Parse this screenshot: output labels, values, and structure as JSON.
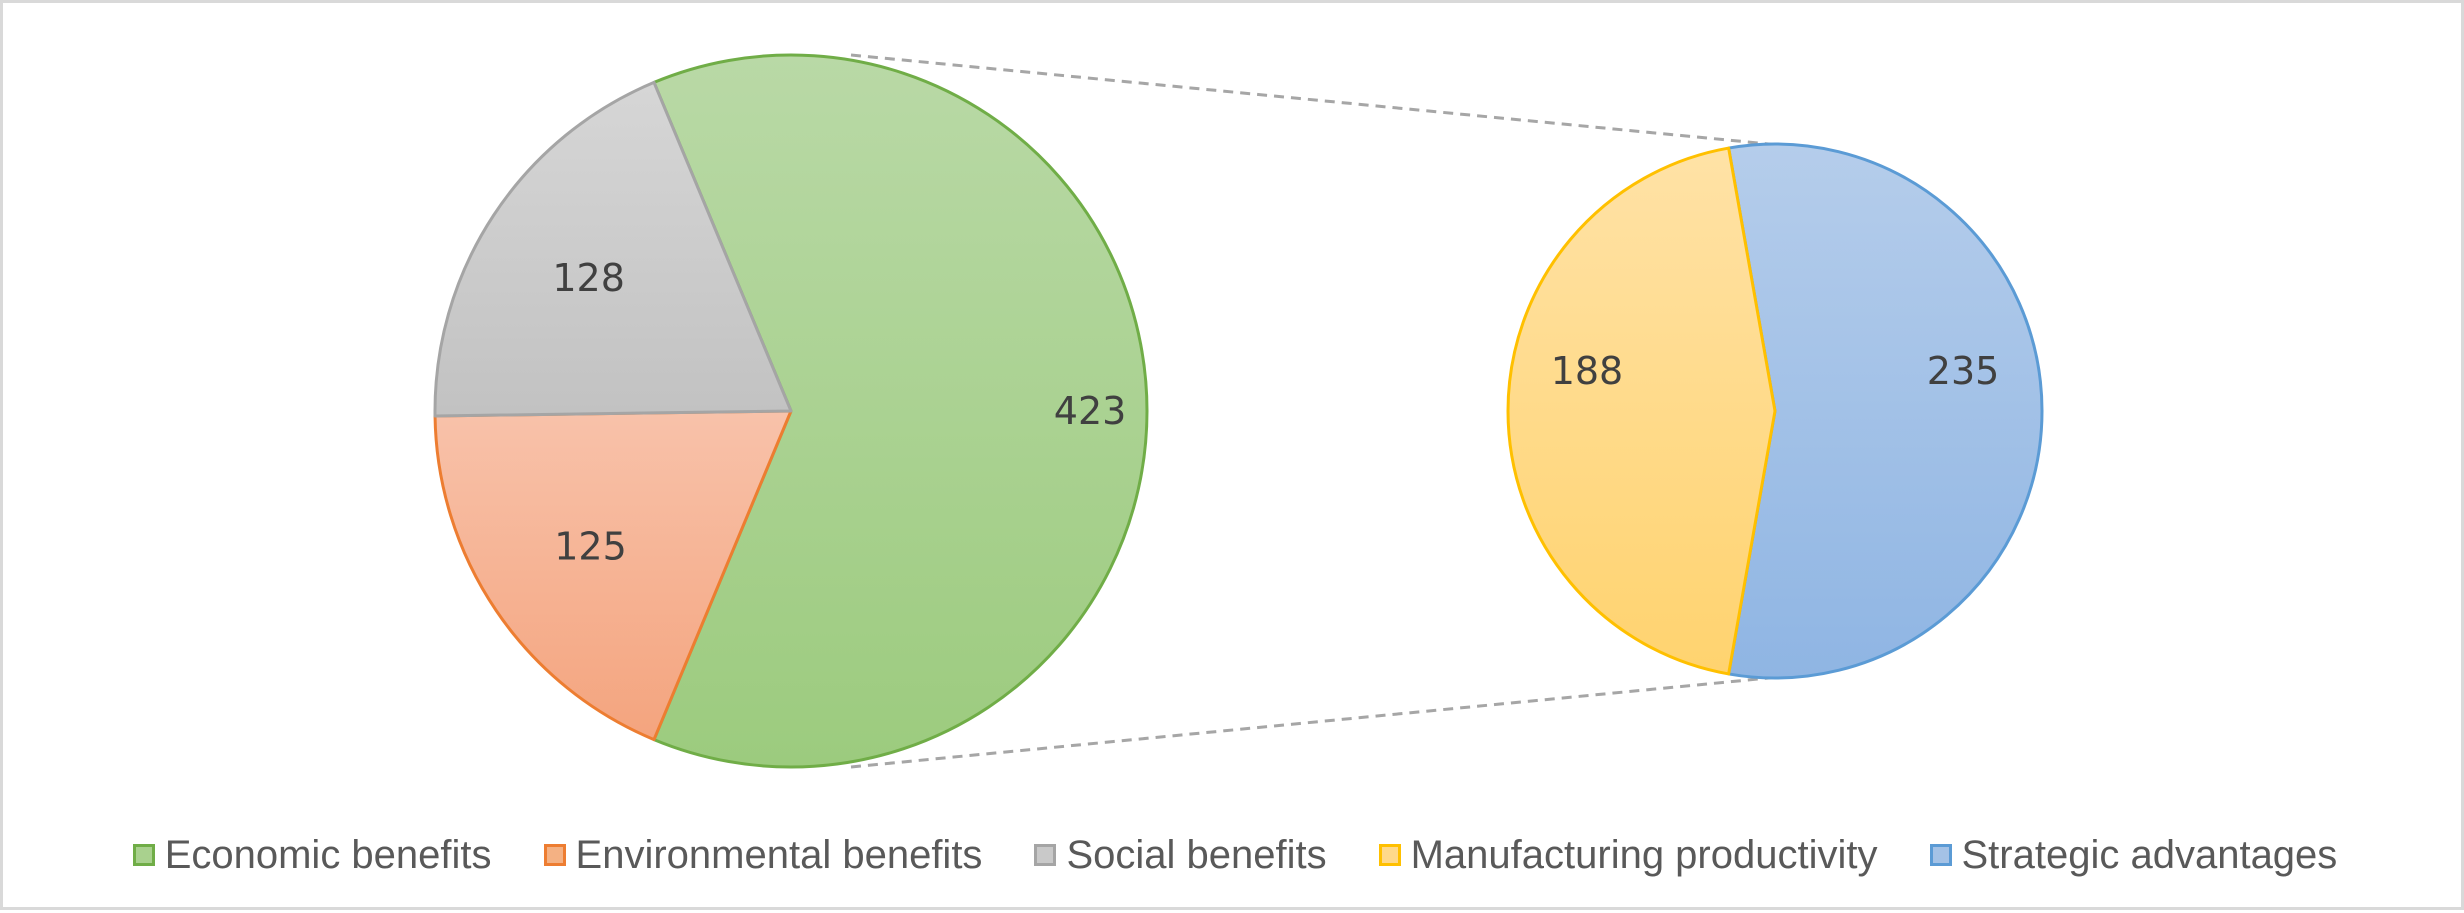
{
  "chart_data": {
    "type": "bar-of-pie",
    "title": "",
    "primary_pie": {
      "slices": [
        {
          "name": "Economic benefits",
          "value": 423,
          "label": "423",
          "fill": "#A9D18E",
          "stroke": "#70AD47"
        },
        {
          "name": "Environmental benefits",
          "value": 125,
          "label": "125",
          "fill": "#F4B183",
          "stroke": "#ED7D31"
        },
        {
          "name": "Social benefits",
          "value": 128,
          "label": "128",
          "fill": "#C9C9C9",
          "stroke": "#A5A5A5"
        }
      ]
    },
    "secondary_pie": {
      "breakdown_of": "Economic benefits",
      "slices": [
        {
          "name": "Strategic advantages",
          "value": 235,
          "label": "235",
          "fill": "#A4C2E6",
          "stroke": "#5B9BD5"
        },
        {
          "name": "Manufacturing productivity",
          "value": 188,
          "label": "188",
          "fill": "#FFD98A",
          "stroke": "#FFC000"
        }
      ]
    },
    "legend": {
      "position": "bottom",
      "entries": [
        {
          "label": "Economic benefits",
          "fill": "#A9D18E",
          "stroke": "#70AD47"
        },
        {
          "label": "Environmental benefits",
          "fill": "#F4B183",
          "stroke": "#ED7D31"
        },
        {
          "label": "Social benefits",
          "fill": "#C9C9C9",
          "stroke": "#A5A5A5"
        },
        {
          "label": "Manufacturing productivity",
          "fill": "#FFD98A",
          "stroke": "#FFC000"
        },
        {
          "label": "Strategic advantages",
          "fill": "#A4C2E6",
          "stroke": "#5B9BD5"
        }
      ]
    }
  }
}
